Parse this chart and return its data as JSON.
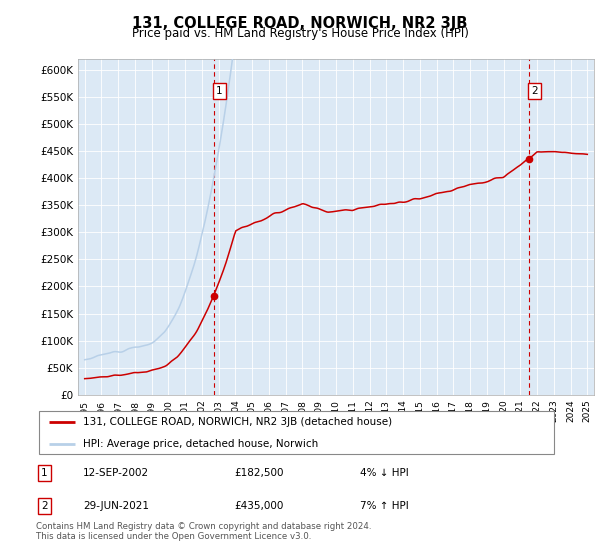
{
  "title": "131, COLLEGE ROAD, NORWICH, NR2 3JB",
  "subtitle": "Price paid vs. HM Land Registry's House Price Index (HPI)",
  "ylabel_ticks": [
    "£0",
    "£50K",
    "£100K",
    "£150K",
    "£200K",
    "£250K",
    "£300K",
    "£350K",
    "£400K",
    "£450K",
    "£500K",
    "£550K",
    "£600K"
  ],
  "ylim": [
    0,
    620000
  ],
  "ytick_vals": [
    0,
    50000,
    100000,
    150000,
    200000,
    250000,
    300000,
    350000,
    400000,
    450000,
    500000,
    550000,
    600000
  ],
  "x_start_year": 1995,
  "x_end_year": 2025,
  "sale1_date": 2002.7,
  "sale1_price": 182500,
  "sale2_date": 2021.5,
  "sale2_price": 435000,
  "hpi_color": "#b8d0e8",
  "price_color": "#cc0000",
  "bg_color": "#dce9f5",
  "legend1": "131, COLLEGE ROAD, NORWICH, NR2 3JB (detached house)",
  "legend2": "HPI: Average price, detached house, Norwich",
  "annotation1_date": "12-SEP-2002",
  "annotation1_price": "£182,500",
  "annotation1_pct": "4% ↓ HPI",
  "annotation2_date": "29-JUN-2021",
  "annotation2_price": "£435,000",
  "annotation2_pct": "7% ↑ HPI",
  "footer": "Contains HM Land Registry data © Crown copyright and database right 2024.\nThis data is licensed under the Open Government Licence v3.0."
}
